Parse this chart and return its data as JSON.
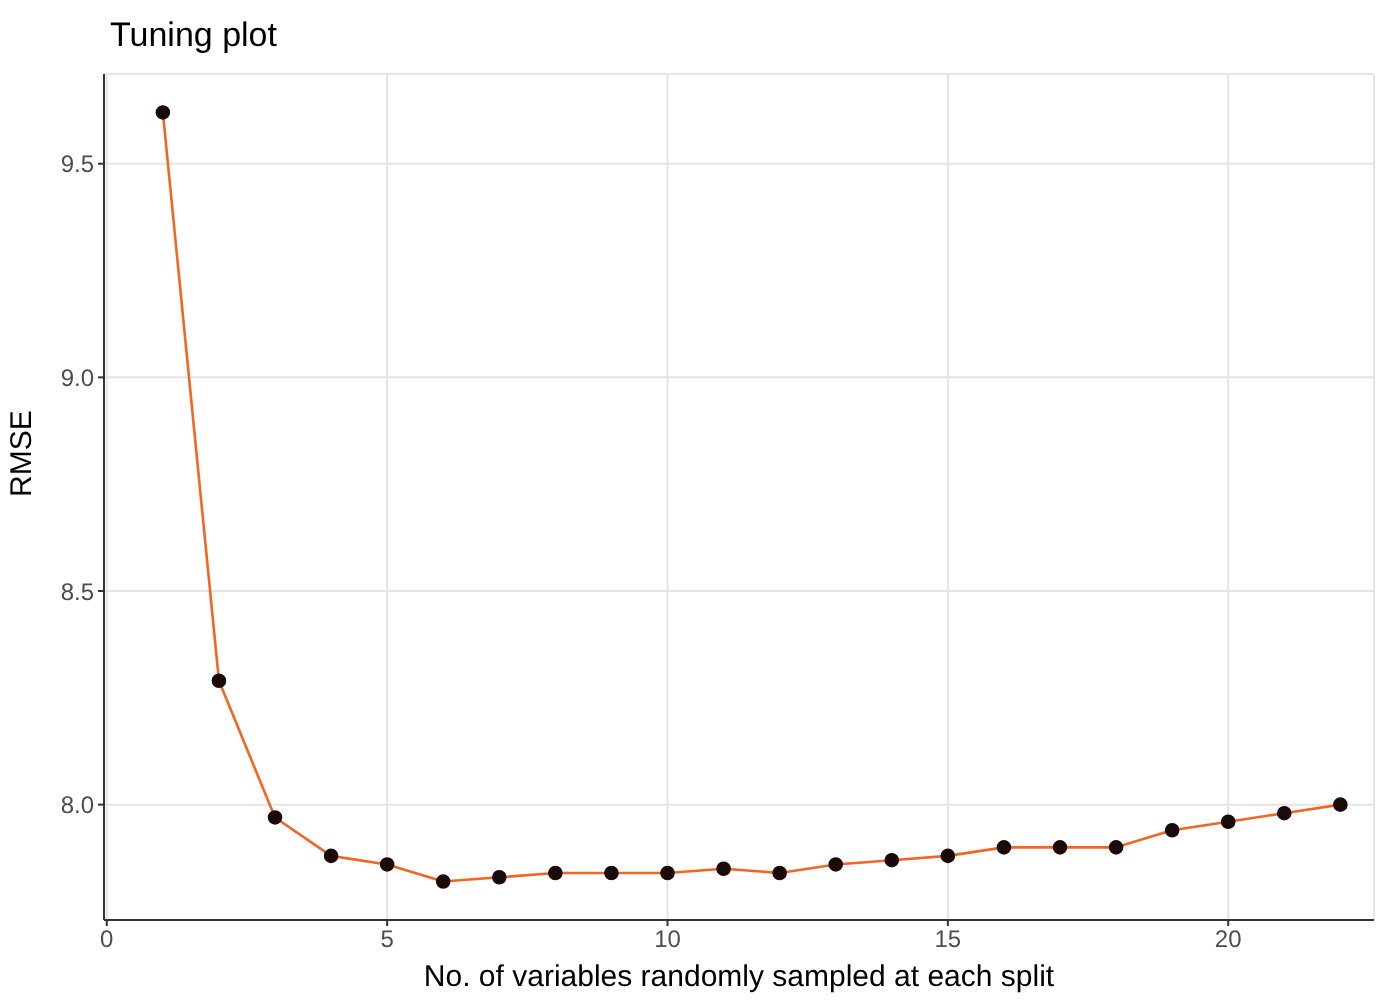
{
  "chart_data": {
    "type": "line",
    "title": "Tuning plot",
    "xlabel": "No. of variables randomly sampled at each split",
    "ylabel": "RMSE",
    "x": [
      1,
      2,
      3,
      4,
      5,
      6,
      7,
      8,
      9,
      10,
      11,
      12,
      13,
      14,
      15,
      16,
      17,
      18,
      19,
      20,
      21,
      22
    ],
    "series": [
      {
        "color": "#f26522",
        "values": [
          9.62,
          8.29,
          7.97,
          7.88,
          7.86,
          7.82,
          7.83,
          7.84,
          7.84,
          7.84,
          7.85,
          7.84,
          7.86,
          7.87,
          7.88,
          7.9,
          7.9,
          7.9,
          7.94,
          7.96,
          7.98,
          8.0
        ]
      }
    ],
    "xlim": [
      -0.05,
      22.6
    ],
    "ylim": [
      7.73,
      9.71
    ],
    "xticks": [
      0,
      5,
      10,
      15,
      20
    ],
    "yticks": [
      {
        "value": 8,
        "label": "8.0"
      },
      8.5,
      {
        "value": 9,
        "label": "9.0"
      },
      9.5
    ],
    "grid": true,
    "marker": "circle",
    "line_style": "solid"
  }
}
